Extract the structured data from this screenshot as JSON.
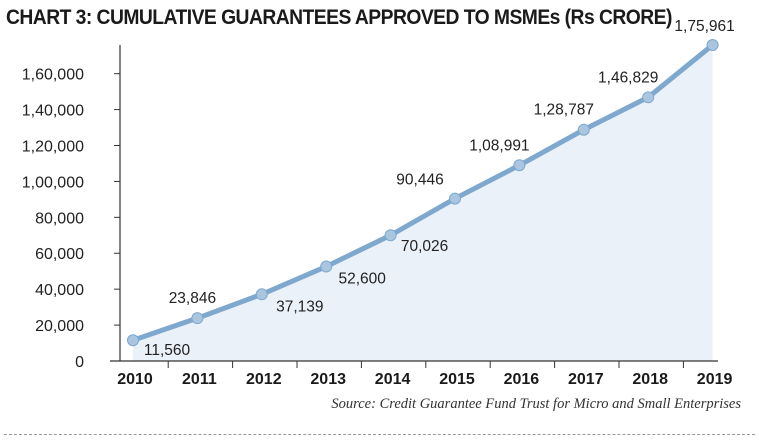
{
  "chart_data": {
    "type": "area",
    "title": "CHART 3: CUMULATIVE GUARANTEES  APPROVED TO MSMEs (Rs CRORE)",
    "source": "Source: Credit Guarantee Fund Trust for Micro and Small Enterprises",
    "categories": [
      "2010",
      "2011",
      "2012",
      "2013",
      "2014",
      "2015",
      "2016",
      "2017",
      "2018",
      "2019"
    ],
    "series": [
      {
        "values": [
          11560,
          23846,
          37139,
          52600,
          70026,
          90446,
          108991,
          128787,
          146829,
          175961
        ],
        "labels": [
          "11,560",
          "23,846",
          "37,139",
          "52,600",
          "70,026",
          "90,446",
          "1,08,991",
          "1,28,787",
          "1,46,829",
          "1,75,961"
        ]
      }
    ],
    "y_ticks": [
      0,
      20000,
      40000,
      60000,
      80000,
      100000,
      120000,
      140000,
      160000
    ],
    "y_tick_labels": [
      "0",
      "20,000",
      "40,000",
      "60,000",
      "80,000",
      "1,00,000",
      "1,20,000",
      "1,40,000",
      "1,60,000"
    ],
    "ylim": [
      0,
      175961
    ],
    "grid": false,
    "legend": "none",
    "colors": {
      "line": "#7fa8cf",
      "marker": "#a9c5e0",
      "fill": "#eaf1f9",
      "axis": "#333333"
    }
  }
}
